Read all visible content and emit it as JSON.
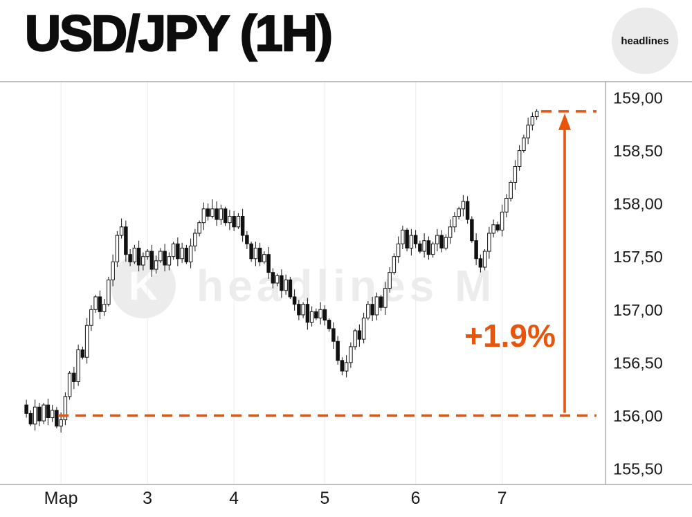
{
  "header": {
    "title": "USD/JPY (1H)",
    "badge": "headlines"
  },
  "watermark": {
    "text": "headlines M",
    "logo_letter": "K"
  },
  "colors": {
    "accent": "#e8540c",
    "candle": "#111111",
    "grid": "#ebebeb",
    "axis": "#9a9a9a",
    "up_fill": "#ffffff",
    "badge_bg": "#ebebeb"
  },
  "chart_data": {
    "type": "candlestick",
    "title": "USD/JPY (1H)",
    "symbol": "USD/JPY",
    "timeframe": "1H",
    "decimal_separator": ",",
    "ylim": [
      155.35,
      159.15
    ],
    "grid": "vertical-day-lines",
    "y_ticks": [
      {
        "value": 159.0,
        "label": "159,00"
      },
      {
        "value": 158.5,
        "label": "158,50"
      },
      {
        "value": 158.0,
        "label": "158,00"
      },
      {
        "value": 157.5,
        "label": "157,50"
      },
      {
        "value": 157.0,
        "label": "157,00"
      },
      {
        "value": 156.5,
        "label": "156,50"
      },
      {
        "value": 156.0,
        "label": "156,00"
      },
      {
        "value": 155.5,
        "label": "155,50"
      }
    ],
    "x_ticks": [
      {
        "index": 8,
        "label": "Мар"
      },
      {
        "index": 28,
        "label": "3"
      },
      {
        "index": 48,
        "label": "4"
      },
      {
        "index": 69,
        "label": "5"
      },
      {
        "index": 90,
        "label": "6"
      },
      {
        "index": 110,
        "label": "7"
      }
    ],
    "annotations": {
      "baseline_price": 156.0,
      "target_price": 158.87,
      "change_label": "+1.9%",
      "style": "orange-dashed-baseline-with-up-arrow"
    },
    "candles": [
      [
        156.1,
        156.15,
        155.98,
        156.02
      ],
      [
        156.02,
        156.05,
        155.9,
        155.92
      ],
      [
        155.92,
        156.15,
        155.86,
        156.08
      ],
      [
        156.08,
        156.12,
        155.9,
        155.95
      ],
      [
        155.95,
        156.12,
        155.92,
        156.1
      ],
      [
        156.1,
        156.16,
        155.91,
        155.98
      ],
      [
        155.98,
        156.1,
        155.94,
        156.05
      ],
      [
        156.05,
        156.08,
        155.88,
        155.9
      ],
      [
        155.9,
        156.03,
        155.84,
        155.96
      ],
      [
        155.96,
        156.22,
        155.91,
        156.18
      ],
      [
        156.18,
        156.42,
        156.15,
        156.4
      ],
      [
        156.4,
        156.46,
        156.25,
        156.32
      ],
      [
        156.32,
        156.67,
        156.28,
        156.62
      ],
      [
        156.62,
        156.65,
        156.53,
        156.55
      ],
      [
        156.55,
        156.92,
        156.49,
        156.85
      ],
      [
        156.85,
        157.04,
        156.8,
        157.0
      ],
      [
        157.0,
        157.14,
        156.97,
        157.12
      ],
      [
        157.12,
        157.18,
        156.91,
        156.98
      ],
      [
        156.98,
        157.1,
        156.94,
        157.05
      ],
      [
        157.05,
        157.31,
        157.03,
        157.28
      ],
      [
        157.28,
        157.52,
        157.22,
        157.45
      ],
      [
        157.45,
        157.74,
        157.4,
        157.7
      ],
      [
        157.7,
        157.86,
        157.67,
        157.78
      ],
      [
        157.78,
        157.84,
        157.45,
        157.52
      ],
      [
        157.52,
        157.57,
        157.41,
        157.45
      ],
      [
        157.45,
        157.61,
        157.43,
        157.58
      ],
      [
        157.58,
        157.65,
        157.36,
        157.42
      ],
      [
        157.42,
        157.54,
        157.37,
        157.5
      ],
      [
        157.5,
        157.57,
        157.47,
        157.55
      ],
      [
        157.55,
        157.61,
        157.31,
        157.38
      ],
      [
        157.38,
        157.51,
        157.34,
        157.46
      ],
      [
        157.46,
        157.58,
        157.44,
        157.55
      ],
      [
        157.55,
        157.62,
        157.36,
        157.42
      ],
      [
        157.42,
        157.54,
        157.37,
        157.5
      ],
      [
        157.5,
        157.64,
        157.47,
        157.62
      ],
      [
        157.62,
        157.68,
        157.41,
        157.48
      ],
      [
        157.48,
        157.63,
        157.44,
        157.58
      ],
      [
        157.58,
        157.61,
        157.43,
        157.45
      ],
      [
        157.45,
        157.67,
        157.39,
        157.6
      ],
      [
        157.6,
        157.76,
        157.55,
        157.72
      ],
      [
        157.72,
        157.84,
        157.69,
        157.82
      ],
      [
        157.82,
        158.01,
        157.75,
        157.95
      ],
      [
        157.95,
        158.0,
        157.84,
        157.88
      ],
      [
        157.88,
        158.04,
        157.86,
        157.95
      ],
      [
        157.95,
        158.02,
        157.79,
        157.85
      ],
      [
        157.85,
        157.99,
        157.8,
        157.95
      ],
      [
        157.95,
        157.97,
        157.79,
        157.82
      ],
      [
        157.82,
        157.94,
        157.75,
        157.88
      ],
      [
        157.88,
        157.93,
        157.74,
        157.78
      ],
      [
        157.78,
        157.91,
        157.76,
        157.88
      ],
      [
        157.88,
        157.95,
        157.64,
        157.7
      ],
      [
        157.7,
        157.74,
        157.57,
        157.62
      ],
      [
        157.62,
        157.64,
        157.45,
        157.48
      ],
      [
        157.48,
        157.64,
        157.41,
        157.58
      ],
      [
        157.58,
        157.63,
        157.41,
        157.45
      ],
      [
        157.45,
        157.55,
        157.43,
        157.52
      ],
      [
        157.52,
        157.59,
        157.29,
        157.35
      ],
      [
        157.35,
        157.39,
        157.2,
        157.25
      ],
      [
        157.25,
        157.34,
        157.22,
        157.32
      ],
      [
        157.32,
        157.38,
        157.11,
        157.18
      ],
      [
        157.18,
        157.33,
        157.14,
        157.28
      ],
      [
        157.28,
        157.31,
        157.1,
        157.12
      ],
      [
        157.12,
        157.19,
        156.99,
        157.05
      ],
      [
        157.05,
        157.09,
        156.9,
        156.95
      ],
      [
        156.95,
        157.07,
        156.92,
        157.05
      ],
      [
        157.05,
        157.11,
        156.81,
        156.88
      ],
      [
        156.88,
        157.03,
        156.84,
        156.98
      ],
      [
        156.98,
        157.01,
        156.9,
        156.92
      ],
      [
        156.92,
        157.07,
        156.86,
        157.0
      ],
      [
        157.0,
        157.04,
        156.85,
        156.9
      ],
      [
        156.9,
        156.92,
        156.79,
        156.82
      ],
      [
        156.82,
        156.88,
        156.63,
        156.7
      ],
      [
        156.7,
        156.75,
        156.48,
        156.52
      ],
      [
        156.52,
        156.55,
        156.38,
        156.42
      ],
      [
        156.42,
        156.57,
        156.36,
        156.5
      ],
      [
        156.5,
        156.69,
        156.45,
        156.65
      ],
      [
        156.65,
        156.82,
        156.62,
        156.8
      ],
      [
        156.8,
        156.86,
        156.65,
        156.72
      ],
      [
        156.72,
        156.97,
        156.68,
        156.92
      ],
      [
        156.92,
        157.08,
        156.9,
        157.05
      ],
      [
        157.05,
        157.12,
        156.89,
        156.95
      ],
      [
        156.95,
        157.16,
        156.9,
        157.12
      ],
      [
        157.12,
        157.14,
        156.99,
        157.02
      ],
      [
        157.02,
        157.26,
        156.95,
        157.2
      ],
      [
        157.2,
        157.4,
        157.16,
        157.35
      ],
      [
        157.35,
        157.53,
        157.33,
        157.5
      ],
      [
        157.5,
        157.69,
        157.44,
        157.62
      ],
      [
        157.62,
        157.79,
        157.57,
        157.75
      ],
      [
        157.75,
        157.77,
        157.55,
        157.58
      ],
      [
        157.58,
        157.76,
        157.51,
        157.7
      ],
      [
        157.7,
        157.75,
        157.58,
        157.62
      ],
      [
        157.62,
        157.65,
        157.53,
        157.55
      ],
      [
        157.55,
        157.72,
        157.49,
        157.65
      ],
      [
        157.65,
        157.69,
        157.47,
        157.52
      ],
      [
        157.52,
        157.64,
        157.49,
        157.62
      ],
      [
        157.62,
        157.76,
        157.55,
        157.7
      ],
      [
        157.7,
        157.75,
        157.54,
        157.58
      ],
      [
        157.58,
        157.71,
        157.56,
        157.68
      ],
      [
        157.68,
        157.85,
        157.62,
        157.78
      ],
      [
        157.78,
        157.92,
        157.73,
        157.88
      ],
      [
        157.88,
        157.97,
        157.85,
        157.95
      ],
      [
        157.95,
        158.08,
        157.88,
        158.02
      ],
      [
        158.02,
        158.07,
        157.81,
        157.85
      ],
      [
        157.85,
        157.88,
        157.63,
        157.65
      ],
      [
        157.65,
        157.72,
        157.42,
        157.48
      ],
      [
        157.48,
        157.52,
        157.35,
        157.4
      ],
      [
        157.4,
        157.57,
        157.37,
        157.55
      ],
      [
        157.55,
        157.78,
        157.48,
        157.72
      ],
      [
        157.72,
        157.85,
        157.68,
        157.8
      ],
      [
        157.8,
        157.83,
        157.73,
        157.75
      ],
      [
        157.75,
        157.99,
        157.69,
        157.92
      ],
      [
        157.92,
        158.09,
        157.87,
        158.05
      ],
      [
        158.05,
        158.22,
        158.02,
        158.2
      ],
      [
        158.2,
        158.41,
        158.13,
        158.35
      ],
      [
        158.35,
        158.55,
        158.31,
        158.5
      ],
      [
        158.5,
        158.65,
        158.48,
        158.62
      ],
      [
        158.62,
        158.81,
        158.56,
        158.74
      ],
      [
        158.74,
        158.86,
        158.69,
        158.82
      ],
      [
        158.82,
        158.89,
        158.79,
        158.87
      ]
    ]
  }
}
